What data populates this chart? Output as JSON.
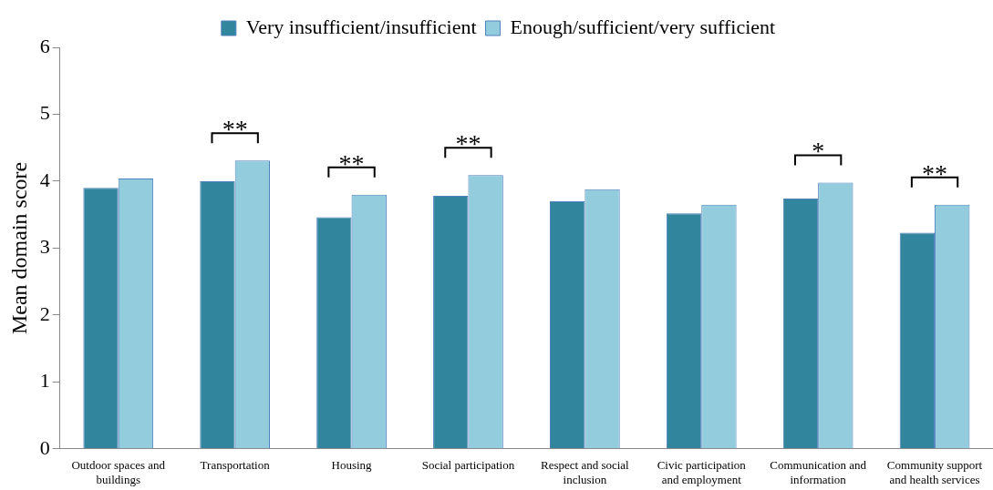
{
  "chart_data": {
    "type": "bar",
    "ylabel": "Mean domain score",
    "categories": [
      "Outdoor spaces and buildings",
      "Transportation",
      "Housing",
      "Social participation",
      "Respect and social inclusion",
      "Civic participation and employment",
      "Communication and information",
      "Community support and health services"
    ],
    "series": [
      {
        "name": "Very insufficient/insufficient",
        "color": "#31859c",
        "values": [
          3.9,
          4.0,
          3.46,
          3.78,
          3.7,
          3.52,
          3.74,
          3.23
        ]
      },
      {
        "name": "Enough/sufficient/very sufficient",
        "color": "#93cddd",
        "values": [
          4.04,
          4.31,
          3.8,
          4.09,
          3.88,
          3.65,
          3.98,
          3.65
        ]
      }
    ],
    "ylim": [
      0,
      6
    ],
    "yticks": [
      0,
      1,
      2,
      3,
      4,
      5,
      6
    ],
    "grid": false,
    "legend": "top",
    "annotations": [
      {
        "text": "**",
        "x": "Transportation",
        "y": 4.31
      },
      {
        "text": "**",
        "x": "Housing",
        "y": 3.8
      },
      {
        "text": "**",
        "x": "Social participation",
        "y": 4.09
      },
      {
        "text": "*",
        "x": "Communication and information",
        "y": 3.98
      },
      {
        "text": "**",
        "x": "Community support and health services",
        "y": 3.65
      }
    ]
  }
}
